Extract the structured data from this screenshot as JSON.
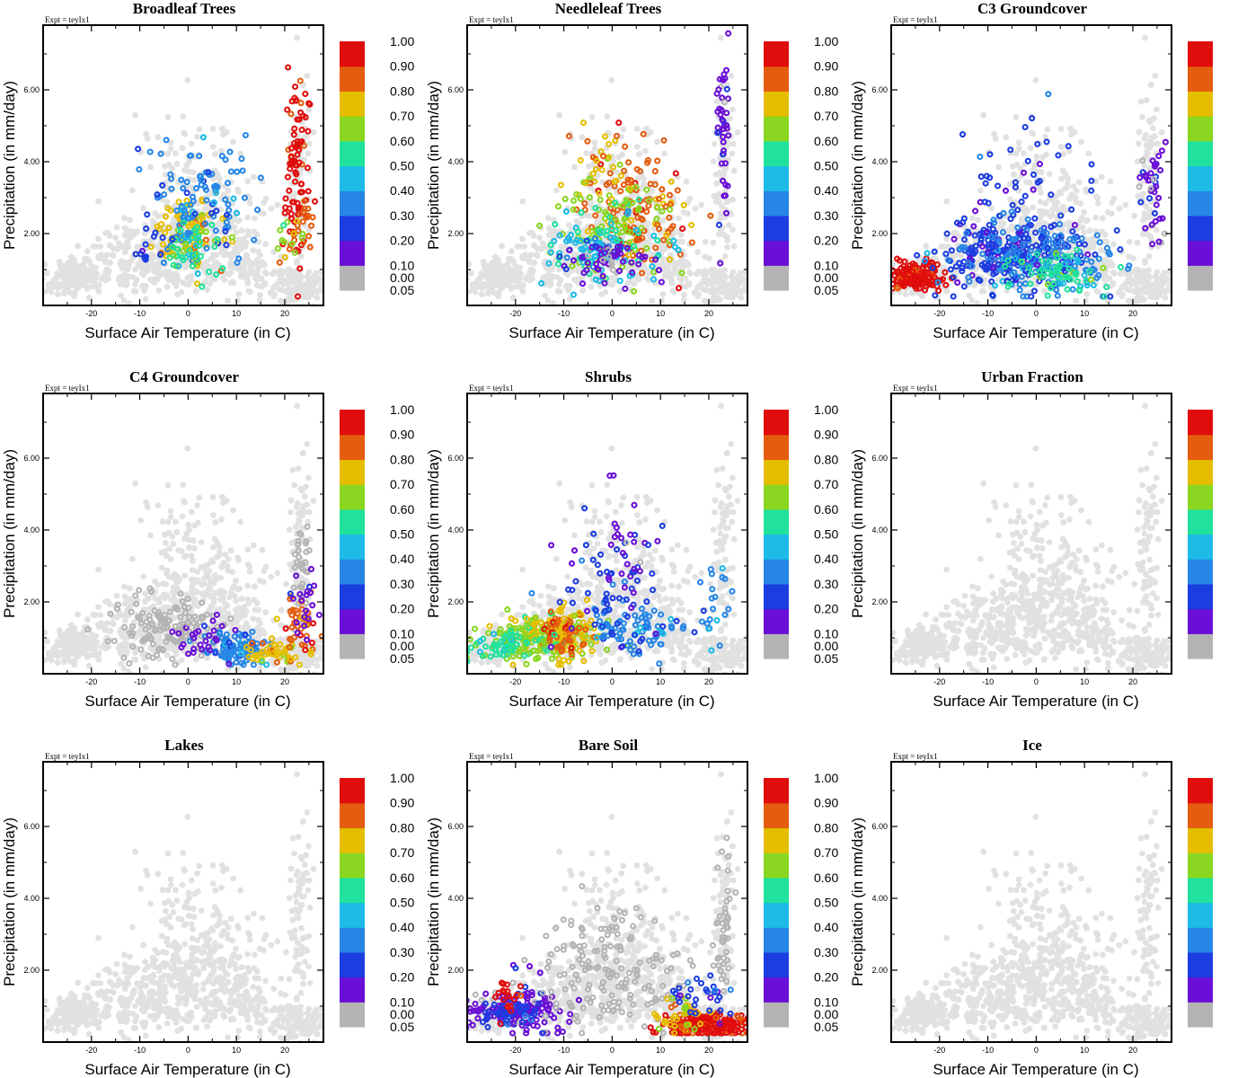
{
  "chart_data": {
    "type": "scatter",
    "xlabel": "Surface Air Temperature (in C)",
    "ylabel": "Precipitation (in mm/day)",
    "expt_label": "Expt = teyIx1",
    "xlim": [
      -30,
      28
    ],
    "ylim": [
      0.0,
      7.8
    ],
    "x_ticks": [
      "-20",
      "-10",
      "0",
      "10",
      "20"
    ],
    "x_tick_values": [
      -20,
      -10,
      0,
      10,
      20
    ],
    "y_ticks": [
      "2.00",
      "4.00",
      "6.00"
    ],
    "y_tick_values": [
      2.0,
      4.0,
      6.0
    ],
    "colorbar": {
      "labels": [
        "0.00",
        "0.05",
        "0.10",
        "0.20",
        "0.30",
        "0.40",
        "0.50",
        "0.60",
        "0.70",
        "0.80",
        "0.90",
        "1.00"
      ],
      "colors": [
        "#b4b4b4",
        "#6a0fd6",
        "#1c3de0",
        "#2686e6",
        "#1dbbe6",
        "#20e29c",
        "#8ad620",
        "#e6be00",
        "#e45d0e",
        "#e00d0d"
      ]
    },
    "background_color": "#e1e1e1",
    "panels": [
      {
        "title": "Broadleaf Trees",
        "clusters": [
          {
            "cx": 0,
            "cy": 1.9,
            "sx": 3.5,
            "sy": 0.5,
            "n": 90,
            "c": 7
          },
          {
            "cx": 3,
            "cy": 2.9,
            "sx": 5.5,
            "sy": 0.9,
            "n": 110,
            "c": 3
          },
          {
            "cx": 0,
            "cy": 1.5,
            "sx": 3,
            "sy": 0.4,
            "n": 50,
            "c": 5
          },
          {
            "cx": 22.5,
            "cy": 3.7,
            "sx": 1.2,
            "sy": 1.2,
            "n": 90,
            "c": 9
          },
          {
            "cx": 24,
            "cy": 2.3,
            "sx": 1.5,
            "sy": 0.3,
            "n": 20,
            "c": 8
          },
          {
            "cx": -8,
            "cy": 1.6,
            "sx": 2,
            "sy": 0.3,
            "n": 15,
            "c": 2
          },
          {
            "cx": 20,
            "cy": 1.8,
            "sx": 2,
            "sy": 0.3,
            "n": 12,
            "c": 6
          }
        ]
      },
      {
        "title": "Needleleaf Trees",
        "clusters": [
          {
            "cx": 5,
            "cy": 2.6,
            "sx": 5,
            "sy": 0.8,
            "n": 120,
            "c": 8
          },
          {
            "cx": 0,
            "cy": 2.2,
            "sx": 6,
            "sy": 0.7,
            "n": 110,
            "c": 6
          },
          {
            "cx": -3,
            "cy": 1.6,
            "sx": 6,
            "sy": 0.5,
            "n": 90,
            "c": 4
          },
          {
            "cx": -1,
            "cy": 1.2,
            "sx": 5,
            "sy": 0.3,
            "n": 60,
            "c": 1
          },
          {
            "cx": 23,
            "cy": 4.8,
            "sx": 0.8,
            "sy": 1.3,
            "n": 45,
            "c": 1
          },
          {
            "cx": -2,
            "cy": 4.0,
            "sx": 3,
            "sy": 0.6,
            "n": 25,
            "c": 7
          }
        ]
      },
      {
        "title": "C3 Groundcover",
        "clusters": [
          {
            "cx": -25,
            "cy": 0.8,
            "sx": 3,
            "sy": 0.2,
            "n": 170,
            "c": 9
          },
          {
            "cx": -5,
            "cy": 1.5,
            "sx": 8,
            "sy": 0.55,
            "n": 260,
            "c": 2
          },
          {
            "cx": 0,
            "cy": 1.2,
            "sx": 9,
            "sy": 0.4,
            "n": 130,
            "c": 3
          },
          {
            "cx": 5,
            "cy": 1.0,
            "sx": 5,
            "sy": 0.3,
            "n": 70,
            "c": 5
          },
          {
            "cx": -2,
            "cy": 3.2,
            "sx": 6,
            "sy": 1.0,
            "n": 40,
            "c": 2
          },
          {
            "cx": 24,
            "cy": 3.0,
            "sx": 1.5,
            "sy": 0.8,
            "n": 40,
            "c": 1
          }
        ]
      },
      {
        "title": "C4 Groundcover",
        "clusters": [
          {
            "cx": -5,
            "cy": 1.3,
            "sx": 6,
            "sy": 0.45,
            "n": 130,
            "c": 0
          },
          {
            "cx": 23,
            "cy": 3.0,
            "sx": 1,
            "sy": 0.8,
            "n": 30,
            "c": 0
          },
          {
            "cx": 10,
            "cy": 0.7,
            "sx": 3,
            "sy": 0.25,
            "n": 90,
            "c": 3
          },
          {
            "cx": 18,
            "cy": 0.6,
            "sx": 4,
            "sy": 0.15,
            "n": 55,
            "c": 7
          },
          {
            "cx": 3,
            "cy": 0.9,
            "sx": 4,
            "sy": 0.3,
            "n": 35,
            "c": 1
          },
          {
            "cx": 23,
            "cy": 1.4,
            "sx": 2,
            "sy": 0.5,
            "n": 35,
            "c": 8
          },
          {
            "cx": 24,
            "cy": 2.0,
            "sx": 1.5,
            "sy": 0.4,
            "n": 20,
            "c": 1
          }
        ]
      },
      {
        "title": "Shrubs",
        "clusters": [
          {
            "cx": -15,
            "cy": 1.0,
            "sx": 6,
            "sy": 0.3,
            "n": 160,
            "c": 6
          },
          {
            "cx": -10,
            "cy": 1.1,
            "sx": 3.5,
            "sy": 0.4,
            "n": 90,
            "c": 7
          },
          {
            "cx": -10,
            "cy": 1.2,
            "sx": 2.5,
            "sy": 0.3,
            "n": 45,
            "c": 8
          },
          {
            "cx": -22,
            "cy": 0.8,
            "sx": 4,
            "sy": 0.2,
            "n": 70,
            "c": 5
          },
          {
            "cx": 5,
            "cy": 1.2,
            "sx": 5,
            "sy": 0.35,
            "n": 80,
            "c": 3
          },
          {
            "cx": 0,
            "cy": 2.2,
            "sx": 5,
            "sy": 0.8,
            "n": 60,
            "c": 2
          },
          {
            "cx": 0,
            "cy": 3.5,
            "sx": 4,
            "sy": 1.0,
            "n": 30,
            "c": 1
          },
          {
            "cx": 22,
            "cy": 1.9,
            "sx": 2,
            "sy": 0.5,
            "n": 20,
            "c": 3
          }
        ]
      },
      {
        "title": "Urban Fraction",
        "clusters": []
      },
      {
        "title": "Lakes",
        "clusters": []
      },
      {
        "title": "Bare Soil",
        "clusters": [
          {
            "cx": -20,
            "cy": 0.85,
            "sx": 5,
            "sy": 0.25,
            "n": 110,
            "c": 1
          },
          {
            "cx": -18,
            "cy": 1.2,
            "sx": 4,
            "sy": 0.5,
            "n": 40,
            "c": 1
          },
          {
            "cx": -22,
            "cy": 0.8,
            "sx": 3,
            "sy": 0.2,
            "n": 50,
            "c": 2
          },
          {
            "cx": -22,
            "cy": 1.3,
            "sx": 1.5,
            "sy": 0.25,
            "n": 20,
            "c": 9
          },
          {
            "cx": 0,
            "cy": 2.0,
            "sx": 7,
            "sy": 0.9,
            "n": 160,
            "c": 0
          },
          {
            "cx": 23,
            "cy": 3.0,
            "sx": 1,
            "sy": 1.2,
            "n": 45,
            "c": 0
          },
          {
            "cx": 20,
            "cy": 0.45,
            "sx": 4,
            "sy": 0.2,
            "n": 200,
            "c": 9
          },
          {
            "cx": 14,
            "cy": 0.7,
            "sx": 3,
            "sy": 0.25,
            "n": 40,
            "c": 7
          },
          {
            "cx": 18,
            "cy": 1.2,
            "sx": 4,
            "sy": 0.3,
            "n": 30,
            "c": 2
          }
        ]
      },
      {
        "title": "Ice",
        "clusters": []
      }
    ]
  }
}
